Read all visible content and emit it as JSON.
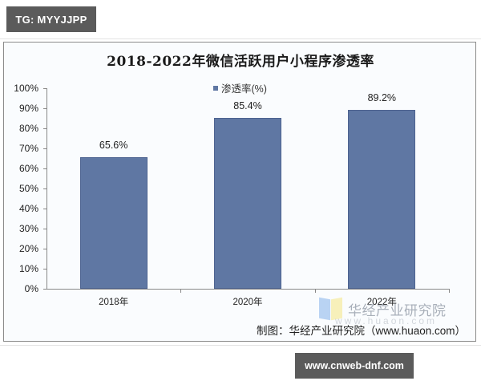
{
  "header_tag": "TG: MYYJJPP",
  "footer_tag": "www.cnweb-dnf.com",
  "watermark": {
    "org": "华经产业研究院",
    "url": "www.huaon.com"
  },
  "source": "制图：华经产业研究院（www.huaon.com）",
  "colors": {
    "bar": "#5f77a3",
    "tag_bg": "#5b5b5b"
  },
  "chart_data": {
    "type": "bar",
    "title": "2018-2022年微信活跃用户小程序渗透率",
    "xlabel": "",
    "ylabel": "",
    "categories": [
      "2018年",
      "2020年",
      "2022年"
    ],
    "series": [
      {
        "name": "渗透率(%)",
        "values": [
          65.6,
          85.4,
          89.2
        ]
      }
    ],
    "value_labels": [
      "65.6%",
      "85.4%",
      "89.2%"
    ],
    "yticks": [
      "0%",
      "10%",
      "20%",
      "30%",
      "40%",
      "50%",
      "60%",
      "70%",
      "80%",
      "90%",
      "100%"
    ],
    "ylim": [
      0,
      100
    ],
    "grid": false,
    "legend_position": "top"
  }
}
